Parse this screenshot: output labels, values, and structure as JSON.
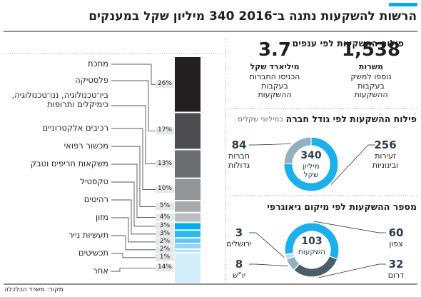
{
  "title": "הרשות להשקעות נתנה ב־2016 340 מיליון שקל במענקים",
  "source": "מקור: משרד הכלכלה",
  "stats": [
    {
      "value": "1,538",
      "unit": "משרות",
      "text": "נוספו למשק בעקבות ההשקעות"
    },
    {
      "value": "3.7",
      "unit": "מיליארד שקל",
      "text": "הכניסו החברות בעקבות ההשקעות"
    }
  ],
  "chart_data": [
    {
      "type": "stacked-bar",
      "title": "פילוח ההשקעות לפי ענפים",
      "categories": [
        "מתכת",
        "פלסטיקה",
        "ביו־טכנולוגיה, ננו־טכנולוגיה, כימיקלים ותרופות",
        "רכיבים אלקטרוניים",
        "מכשור רפואי",
        "משקאות חריפים וטבק",
        "טקסטיל",
        "רהיטים",
        "מזון",
        "תעשיות נייר",
        "תכשיטים",
        "אחר"
      ],
      "values": [
        26,
        17,
        13,
        10,
        5,
        4,
        3,
        3,
        2,
        2,
        1,
        14
      ],
      "value_labels": [
        "26%",
        "17%",
        "13%",
        "10%",
        "5%",
        "4%",
        "3%",
        "3%",
        "2%",
        "2%",
        "1%",
        "14%"
      ],
      "colors": [
        "#231f20",
        "#4d4d4f",
        "#6d6e71",
        "#939598",
        "#a7a9ac",
        "#bcbec0",
        "#00aeef",
        "#29b9f1",
        "#5cc8f3",
        "#8dd6f6",
        "#b0e2f8",
        "#d2eefb"
      ]
    },
    {
      "type": "donut",
      "title": "פילוח ההשקעות לפי גודל חברה",
      "subtitle": "במיליוני שקלים",
      "center_value": 340,
      "center_label": "מיליון שקל",
      "categories": [
        "זעירות ובינוניות",
        "חברות גדולות"
      ],
      "values": [
        256,
        84
      ],
      "colors": [
        "#1ab0ec",
        "#93b0c1"
      ],
      "start_angle": 0
    },
    {
      "type": "donut",
      "title": "מספר ההשקעות לפי מיקום גיאוגרפי",
      "center_value": 103,
      "center_label": "השקעות",
      "categories": [
        "צפון",
        "דרום",
        "יו\"ש",
        "ירושלים"
      ],
      "values": [
        60,
        32,
        8,
        3
      ],
      "colors": [
        "#1ab0ec",
        "#4c5d69",
        "#93b0c1",
        "#c7dbe6"
      ],
      "start_angle": -100
    }
  ]
}
